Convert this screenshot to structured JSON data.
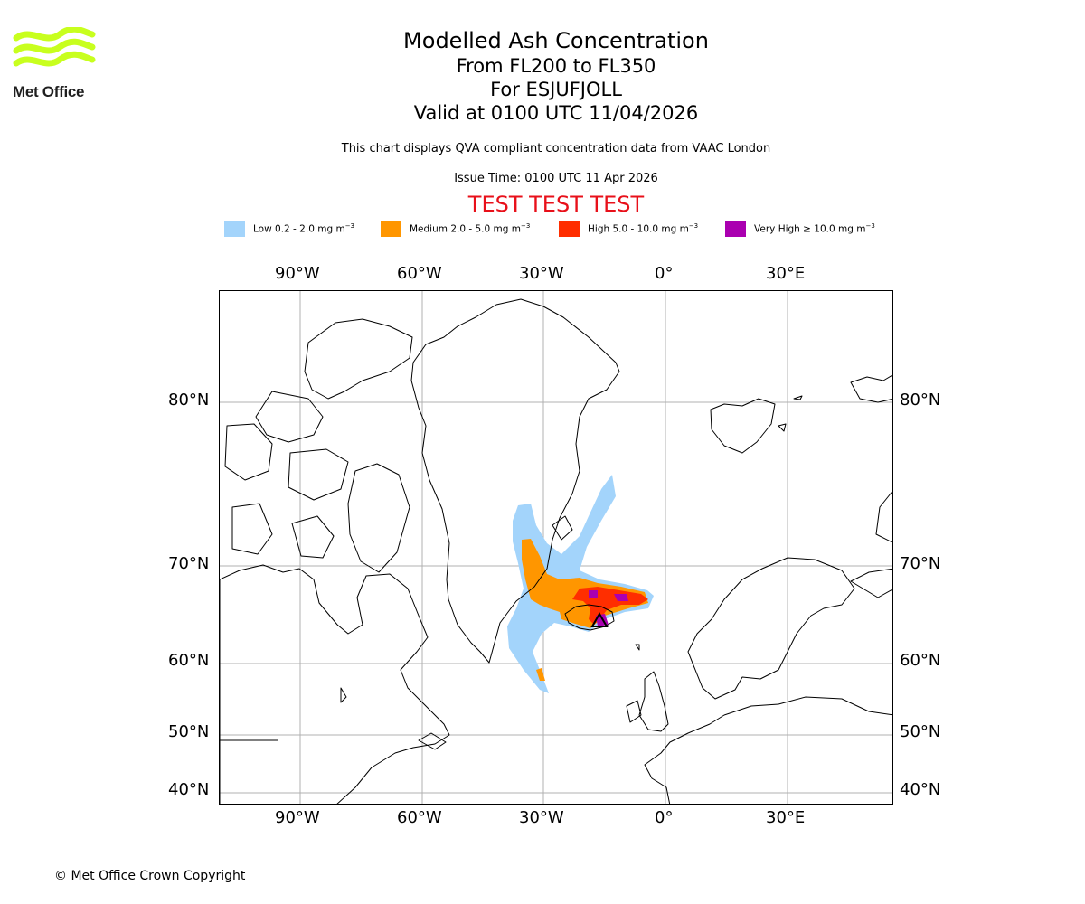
{
  "logo": {
    "text": "Met Office"
  },
  "title": {
    "line1": "Modelled Ash Concentration",
    "line2": "From FL200 to FL350",
    "line3": "For ESJUFJOLL",
    "line4": "Valid at 0100 UTC 11/04/2026"
  },
  "description": "This chart displays QVA compliant concentration data from VAAC London",
  "issue_time": "Issue Time: 0100 UTC 11 Apr 2026",
  "test_banner": "TEST TEST TEST",
  "colors": {
    "low": "#a3d4fb",
    "medium": "#ff9600",
    "high": "#ff2e00",
    "very_high": "#aa00b0",
    "test": "#e8101a",
    "logo": "#c8ff1e"
  },
  "legend": [
    {
      "label": "Low 0.2 - 2.0 mg m",
      "unit_exp": "−3",
      "color": "#a3d4fb"
    },
    {
      "label": "Medium 2.0 - 5.0 mg m",
      "unit_exp": "−3",
      "color": "#ff9600"
    },
    {
      "label": "High 5.0 - 10.0 mg m",
      "unit_exp": "−3",
      "color": "#ff2e00"
    },
    {
      "label": "Very High  ≥  10.0 mg m",
      "unit_exp": "−3",
      "color": "#aa00b0"
    }
  ],
  "axes": {
    "lon_labels": [
      "90°W",
      "60°W",
      "30°W",
      "0°",
      "30°E"
    ],
    "lat_labels": [
      "80°N",
      "70°N",
      "60°N",
      "50°N",
      "40°N"
    ],
    "grid": true
  },
  "copyright": "© Met Office Crown Copyright"
}
